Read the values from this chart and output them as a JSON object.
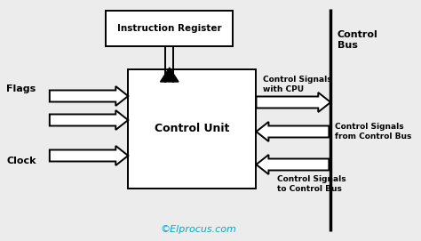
{
  "bg_color": "#ececec",
  "box_color": "white",
  "box_edge_color": "black",
  "text_color": "black",
  "watermark_color": "#00aacc",
  "figsize": [
    4.74,
    2.71
  ],
  "dpi": 100,
  "control_unit_label": "Control Unit",
  "instruction_register_label": "Instruction Register",
  "flags_label": "Flags",
  "clock_label": "Clock",
  "control_signals_cpu_label": "Control Signals\nwith CPU",
  "control_signals_from_label": "Control Signals\nfrom Control Bus",
  "control_signals_to_label": "Control Signals\nto Control Bus",
  "control_bus_label": "Control\nBus",
  "watermark": "©Elprocus.com"
}
